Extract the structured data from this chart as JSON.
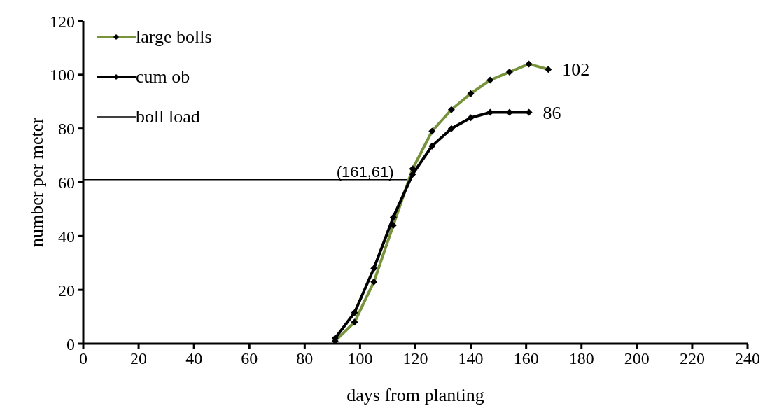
{
  "chart_data": {
    "type": "line",
    "xlabel": "days from planting",
    "ylabel": "number per meter",
    "xlim": [
      0,
      240
    ],
    "xticks": [
      0,
      20,
      40,
      60,
      80,
      100,
      120,
      140,
      160,
      180,
      200,
      220,
      240
    ],
    "ylim": [
      0,
      120
    ],
    "yticks": [
      0,
      20,
      40,
      60,
      80,
      100,
      120
    ],
    "grid": false,
    "legend": "top left",
    "marker": "diamond",
    "series": [
      {
        "name": "large bolls",
        "color": "#77933c",
        "x": [
          91,
          98,
          105,
          112,
          119,
          126,
          133,
          140,
          147,
          154,
          161,
          168
        ],
        "values": [
          1,
          8,
          23,
          44,
          65,
          79,
          87,
          93,
          98,
          101,
          104,
          102
        ]
      },
      {
        "name": "cum ob",
        "color": "#000000",
        "x": [
          91,
          98,
          105,
          112,
          119,
          126,
          133,
          140,
          147,
          154,
          161
        ],
        "values": [
          2,
          11.5,
          28,
          47,
          63,
          73.5,
          80,
          84,
          86,
          86,
          86
        ]
      },
      {
        "name": "boll load",
        "color": "#000000",
        "marker": "none",
        "x": [
          0,
          117
        ],
        "values": [
          61,
          61
        ]
      }
    ],
    "annotations": [
      {
        "text": "(161,61)",
        "x": 117,
        "y": 61
      },
      {
        "text": "102",
        "x": 168,
        "y": 102
      },
      {
        "text": "86",
        "x": 161,
        "y": 86
      }
    ]
  }
}
